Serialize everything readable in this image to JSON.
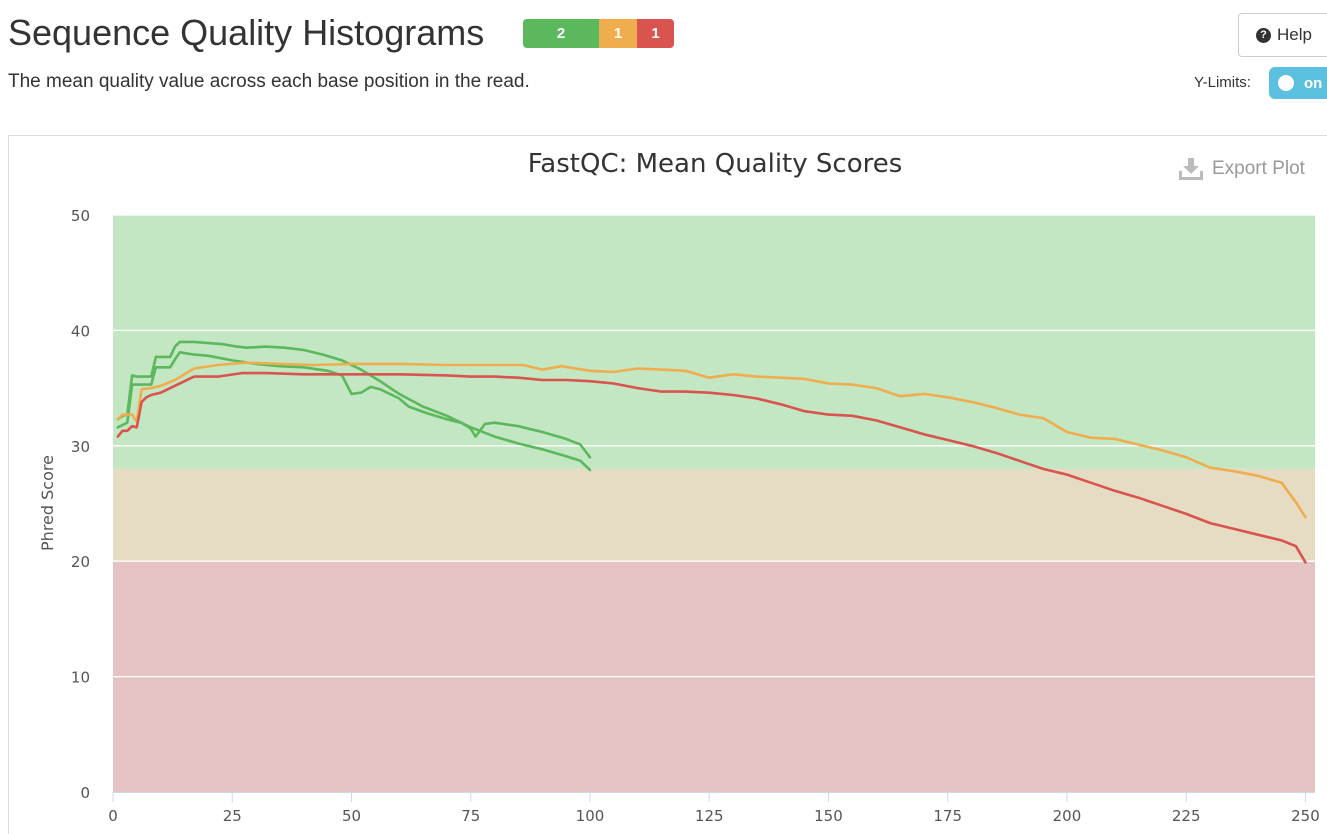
{
  "header": {
    "title": "Sequence Quality Histograms",
    "subtitle": "The mean quality value across each base position in the read.",
    "status": {
      "pass": "2",
      "warn": "1",
      "fail": "1"
    },
    "help_label": "Help",
    "ylimits_label": "Y-Limits:",
    "toggle_label": "on"
  },
  "colors": {
    "pass": "#5cb85c",
    "warn": "#f0ad4e",
    "fail": "#d9534f",
    "toggle": "#5bc0de",
    "zone_good": "#c3e6c3",
    "zone_warn": "#e6dcc3",
    "zone_bad": "#e6c3c3"
  },
  "export_label": "Export Plot",
  "chart_data": {
    "type": "line",
    "title": "FastQC: Mean Quality Scores",
    "xlabel": "",
    "ylabel": "Phred Score",
    "xlim": [
      0,
      252
    ],
    "ylim": [
      0,
      50
    ],
    "x_ticks": [
      0,
      25,
      50,
      75,
      100,
      125,
      150,
      175,
      200,
      225,
      250
    ],
    "y_ticks": [
      0,
      10,
      20,
      30,
      40,
      50
    ],
    "bands": [
      {
        "from": 28,
        "to": 50,
        "zone": "good"
      },
      {
        "from": 20,
        "to": 28,
        "zone": "warn"
      },
      {
        "from": 0,
        "to": 20,
        "zone": "bad"
      }
    ],
    "grid": true,
    "legend": "none",
    "series": [
      {
        "status": "pass",
        "points": [
          [
            1,
            32.3
          ],
          [
            2,
            32.6
          ],
          [
            3,
            32.7
          ],
          [
            4,
            36.1
          ],
          [
            5,
            36.0
          ],
          [
            6,
            36.0
          ],
          [
            7,
            36.0
          ],
          [
            8,
            36.0
          ],
          [
            9,
            37.7
          ],
          [
            10,
            37.7
          ],
          [
            11,
            37.7
          ],
          [
            12,
            37.7
          ],
          [
            13,
            38.6
          ],
          [
            14,
            39.0
          ],
          [
            17,
            39.0
          ],
          [
            20,
            38.9
          ],
          [
            23,
            38.8
          ],
          [
            26,
            38.6
          ],
          [
            28,
            38.5
          ],
          [
            32,
            38.6
          ],
          [
            36,
            38.5
          ],
          [
            40,
            38.3
          ],
          [
            44,
            37.9
          ],
          [
            48,
            37.4
          ],
          [
            52,
            36.6
          ],
          [
            56,
            35.6
          ],
          [
            60,
            34.5
          ],
          [
            65,
            33.4
          ],
          [
            70,
            32.6
          ],
          [
            75,
            31.6
          ],
          [
            80,
            30.8
          ],
          [
            85,
            30.2
          ],
          [
            90,
            29.7
          ],
          [
            95,
            29.1
          ],
          [
            98,
            28.7
          ],
          [
            100,
            27.9
          ]
        ]
      },
      {
        "status": "pass",
        "points": [
          [
            1,
            31.6
          ],
          [
            2,
            31.8
          ],
          [
            3,
            32.0
          ],
          [
            4,
            35.3
          ],
          [
            6,
            35.3
          ],
          [
            8,
            35.3
          ],
          [
            9,
            36.8
          ],
          [
            10,
            36.8
          ],
          [
            12,
            36.8
          ],
          [
            13,
            37.5
          ],
          [
            14,
            38.1
          ],
          [
            17,
            37.9
          ],
          [
            20,
            37.8
          ],
          [
            25,
            37.4
          ],
          [
            30,
            37.1
          ],
          [
            35,
            36.9
          ],
          [
            40,
            36.8
          ],
          [
            45,
            36.5
          ],
          [
            48,
            36.1
          ],
          [
            50,
            34.5
          ],
          [
            52,
            34.6
          ],
          [
            54,
            35.1
          ],
          [
            56,
            34.9
          ],
          [
            60,
            34.1
          ],
          [
            62,
            33.4
          ],
          [
            66,
            32.8
          ],
          [
            70,
            32.3
          ],
          [
            73,
            32.0
          ],
          [
            75,
            31.5
          ],
          [
            76,
            30.8
          ],
          [
            78,
            31.9
          ],
          [
            80,
            32.0
          ],
          [
            85,
            31.7
          ],
          [
            90,
            31.2
          ],
          [
            95,
            30.6
          ],
          [
            98,
            30.1
          ],
          [
            100,
            29.0
          ]
        ]
      },
      {
        "status": "warn",
        "points": [
          [
            1,
            32.3
          ],
          [
            2,
            32.7
          ],
          [
            4,
            32.7
          ],
          [
            5,
            32.1
          ],
          [
            6,
            34.9
          ],
          [
            8,
            35.0
          ],
          [
            10,
            35.2
          ],
          [
            13,
            35.7
          ],
          [
            17,
            36.7
          ],
          [
            22,
            37.0
          ],
          [
            28,
            37.2
          ],
          [
            35,
            37.1
          ],
          [
            42,
            37.0
          ],
          [
            50,
            37.1
          ],
          [
            60,
            37.1
          ],
          [
            70,
            37.0
          ],
          [
            80,
            37.0
          ],
          [
            86,
            37.0
          ],
          [
            90,
            36.6
          ],
          [
            94,
            36.9
          ],
          [
            100,
            36.5
          ],
          [
            105,
            36.4
          ],
          [
            110,
            36.7
          ],
          [
            115,
            36.6
          ],
          [
            120,
            36.5
          ],
          [
            125,
            35.9
          ],
          [
            130,
            36.2
          ],
          [
            135,
            36.0
          ],
          [
            140,
            35.9
          ],
          [
            145,
            35.8
          ],
          [
            150,
            35.4
          ],
          [
            155,
            35.3
          ],
          [
            160,
            35.0
          ],
          [
            165,
            34.3
          ],
          [
            170,
            34.5
          ],
          [
            175,
            34.2
          ],
          [
            180,
            33.8
          ],
          [
            185,
            33.3
          ],
          [
            190,
            32.7
          ],
          [
            195,
            32.4
          ],
          [
            200,
            31.2
          ],
          [
            205,
            30.7
          ],
          [
            210,
            30.6
          ],
          [
            215,
            30.1
          ],
          [
            220,
            29.6
          ],
          [
            225,
            29.0
          ],
          [
            230,
            28.1
          ],
          [
            235,
            27.8
          ],
          [
            240,
            27.4
          ],
          [
            245,
            26.8
          ],
          [
            248,
            25.1
          ],
          [
            250,
            23.8
          ]
        ]
      },
      {
        "status": "fail",
        "points": [
          [
            1,
            30.8
          ],
          [
            2,
            31.3
          ],
          [
            3,
            31.3
          ],
          [
            4,
            31.7
          ],
          [
            5,
            31.6
          ],
          [
            6,
            33.8
          ],
          [
            7,
            34.2
          ],
          [
            8,
            34.4
          ],
          [
            10,
            34.6
          ],
          [
            12,
            35.0
          ],
          [
            15,
            35.6
          ],
          [
            17,
            36.0
          ],
          [
            22,
            36.0
          ],
          [
            27,
            36.3
          ],
          [
            32,
            36.3
          ],
          [
            40,
            36.2
          ],
          [
            50,
            36.2
          ],
          [
            60,
            36.2
          ],
          [
            70,
            36.1
          ],
          [
            75,
            36.0
          ],
          [
            80,
            36.0
          ],
          [
            85,
            35.9
          ],
          [
            90,
            35.7
          ],
          [
            95,
            35.7
          ],
          [
            100,
            35.6
          ],
          [
            105,
            35.4
          ],
          [
            110,
            35.0
          ],
          [
            115,
            34.7
          ],
          [
            120,
            34.7
          ],
          [
            125,
            34.6
          ],
          [
            130,
            34.4
          ],
          [
            135,
            34.1
          ],
          [
            140,
            33.6
          ],
          [
            145,
            33.0
          ],
          [
            150,
            32.7
          ],
          [
            155,
            32.6
          ],
          [
            160,
            32.2
          ],
          [
            165,
            31.6
          ],
          [
            170,
            31.0
          ],
          [
            175,
            30.5
          ],
          [
            180,
            30.0
          ],
          [
            185,
            29.4
          ],
          [
            190,
            28.7
          ],
          [
            195,
            28.0
          ],
          [
            200,
            27.5
          ],
          [
            205,
            26.8
          ],
          [
            210,
            26.1
          ],
          [
            215,
            25.5
          ],
          [
            220,
            24.8
          ],
          [
            225,
            24.1
          ],
          [
            230,
            23.3
          ],
          [
            235,
            22.8
          ],
          [
            240,
            22.3
          ],
          [
            245,
            21.8
          ],
          [
            248,
            21.3
          ],
          [
            250,
            19.9
          ]
        ]
      }
    ]
  }
}
